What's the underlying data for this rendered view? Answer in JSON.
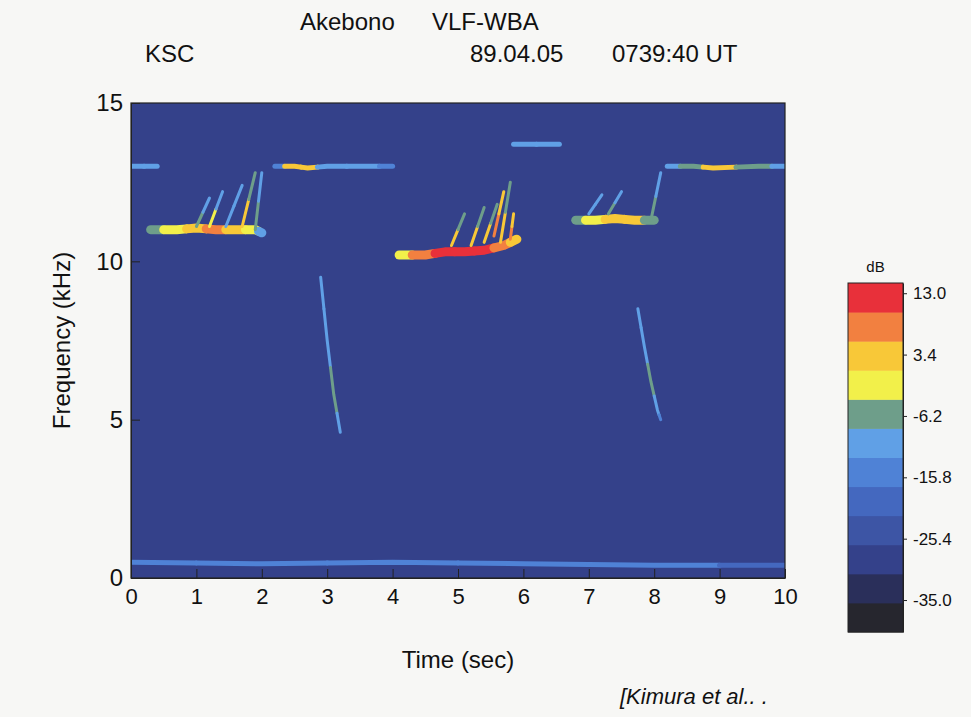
{
  "chart_data": {
    "type": "spectrogram",
    "title": [
      "Akebono",
      "VLF-WBA"
    ],
    "subtitle": [
      "KSC",
      "89.04.05",
      "0739:40 UT"
    ],
    "x_label": "Time (sec)",
    "y_label": "Frequency (kHz)",
    "annotations": [
      "[Kimura et al.. ."
    ],
    "xlim": [
      0,
      10
    ],
    "ylim": [
      0,
      15
    ],
    "xticks": [
      0,
      1,
      2,
      3,
      4,
      5,
      6,
      7,
      8,
      9,
      10
    ],
    "yticks": [
      0,
      5,
      10,
      15
    ],
    "background_db": -27,
    "colorbar": {
      "title": "dB",
      "range": [
        -40,
        14.6
      ],
      "ticks": [
        {
          "value": 13.0,
          "label": "13.0"
        },
        {
          "value": 3.4,
          "label": "3.4"
        },
        {
          "value": -6.2,
          "label": "-6.2"
        },
        {
          "value": -15.8,
          "label": "-15.8"
        },
        {
          "value": -25.4,
          "label": "-25.4"
        },
        {
          "value": -35.0,
          "label": "-35.0"
        }
      ],
      "colors": [
        "#26262e",
        "#2a2f5a",
        "#34418a",
        "#3d55a5",
        "#4468bf",
        "#4f82d6",
        "#60a0e6",
        "#6e9e8a",
        "#f2f04a",
        "#f8c838",
        "#f28040",
        "#e8303a"
      ]
    },
    "series": [
      {
        "x": [
          0,
          0.4
        ],
        "values": [
          13.0,
          13.0
        ],
        "db": [
          -12,
          -12
        ],
        "line_style": "medium"
      },
      {
        "x": [
          2.2,
          2.5,
          2.7,
          3.0,
          3.6,
          4.0
        ],
        "values": [
          13.0,
          13.0,
          12.95,
          13.0,
          13.0,
          13.0
        ],
        "db": [
          -14,
          2,
          2,
          -12,
          -10,
          -14
        ],
        "line_style": "medium"
      },
      {
        "x": [
          5.85,
          6.55
        ],
        "values": [
          13.7,
          13.7
        ],
        "db": [
          -10,
          -10
        ],
        "line_style": "medium"
      },
      {
        "x": [
          8.2,
          8.6,
          8.9,
          9.6,
          10
        ],
        "values": [
          13.0,
          13.0,
          12.95,
          13.0,
          13.0
        ],
        "db": [
          -12,
          -6,
          2,
          -8,
          -12
        ],
        "line_style": "medium"
      },
      {
        "x": [
          0.3,
          0.7,
          1.0,
          1.3,
          1.6,
          1.9,
          2.0
        ],
        "values": [
          11.0,
          11.0,
          11.05,
          11.0,
          11.0,
          11.0,
          10.9
        ],
        "db": [
          -6,
          0,
          3,
          6,
          3,
          0,
          -12
        ],
        "line_style": "thick"
      },
      {
        "x": [
          1.0,
          1.2
        ],
        "values": [
          11.1,
          12.0
        ],
        "db": [
          -6,
          -10
        ],
        "line_style": "thin"
      },
      {
        "x": [
          1.2,
          1.4
        ],
        "values": [
          11.1,
          12.2
        ],
        "db": [
          -3,
          -10
        ],
        "line_style": "thin"
      },
      {
        "x": [
          1.45,
          1.7
        ],
        "values": [
          11.1,
          12.4
        ],
        "db": [
          -10,
          -12
        ],
        "line_style": "thin"
      },
      {
        "x": [
          1.7,
          1.9
        ],
        "values": [
          11.1,
          12.8
        ],
        "db": [
          2,
          -8
        ],
        "line_style": "thin"
      },
      {
        "x": [
          1.9,
          2.0
        ],
        "values": [
          11.0,
          12.8
        ],
        "db": [
          -8,
          -12
        ],
        "line_style": "thin"
      },
      {
        "x": [
          4.1,
          4.5,
          4.8,
          5.1,
          5.4,
          5.7,
          5.9
        ],
        "values": [
          10.2,
          10.2,
          10.3,
          10.3,
          10.35,
          10.5,
          10.7
        ],
        "db": [
          0,
          10,
          13,
          12,
          12,
          10,
          3
        ],
        "line_style": "thick"
      },
      {
        "x": [
          4.9,
          5.1
        ],
        "values": [
          10.5,
          11.5
        ],
        "db": [
          3,
          -8
        ],
        "line_style": "thin"
      },
      {
        "x": [
          5.2,
          5.4
        ],
        "values": [
          10.5,
          11.7
        ],
        "db": [
          5,
          -6
        ],
        "line_style": "thin"
      },
      {
        "x": [
          5.4,
          5.6
        ],
        "values": [
          10.6,
          11.8
        ],
        "db": [
          2,
          -8
        ],
        "line_style": "thin"
      },
      {
        "x": [
          5.55,
          5.7
        ],
        "values": [
          10.8,
          12.2
        ],
        "db": [
          8,
          2
        ],
        "line_style": "thin"
      },
      {
        "x": [
          5.65,
          5.8
        ],
        "values": [
          10.6,
          12.5
        ],
        "db": [
          2,
          -6
        ],
        "line_style": "thin"
      },
      {
        "x": [
          5.8,
          5.85
        ],
        "values": [
          10.7,
          11.5
        ],
        "db": [
          10,
          3
        ],
        "line_style": "thin"
      },
      {
        "x": [
          6.8,
          7.1,
          7.4,
          7.7,
          8.0
        ],
        "values": [
          11.3,
          11.3,
          11.35,
          11.3,
          11.3
        ],
        "db": [
          -6,
          0,
          4,
          2,
          -8
        ],
        "line_style": "thick"
      },
      {
        "x": [
          7.0,
          7.2
        ],
        "values": [
          11.5,
          12.1
        ],
        "db": [
          -10,
          -12
        ],
        "line_style": "thin"
      },
      {
        "x": [
          7.3,
          7.5
        ],
        "values": [
          11.5,
          12.2
        ],
        "db": [
          -8,
          -12
        ],
        "line_style": "thin"
      },
      {
        "x": [
          7.95,
          8.1
        ],
        "values": [
          11.3,
          12.8
        ],
        "db": [
          -8,
          -12
        ],
        "line_style": "thin"
      },
      {
        "x": [
          2.9,
          3.0,
          3.1,
          3.2
        ],
        "values": [
          9.5,
          7.5,
          5.8,
          4.6
        ],
        "db": [
          -12,
          -10,
          -8,
          -12
        ],
        "line_style": "thin"
      },
      {
        "x": [
          7.75,
          7.85,
          7.95,
          8.05,
          8.1
        ],
        "values": [
          8.5,
          7.3,
          6.2,
          5.3,
          5.0
        ],
        "db": [
          -12,
          -10,
          -8,
          -12,
          -14
        ],
        "line_style": "thin"
      },
      {
        "x": [
          0,
          2,
          4,
          6,
          8,
          10
        ],
        "values": [
          0.5,
          0.45,
          0.5,
          0.45,
          0.4,
          0.4
        ],
        "db": [
          -16,
          -14,
          -16,
          -15,
          -16,
          -18
        ],
        "line_style": "medium"
      }
    ]
  }
}
